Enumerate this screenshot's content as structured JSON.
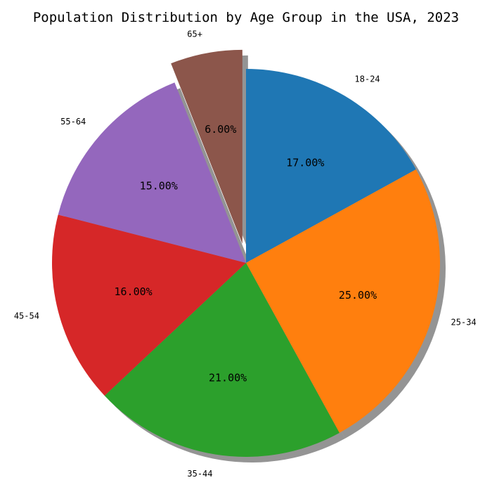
{
  "chart_data": {
    "type": "pie",
    "title": "Population Distribution by Age Group in the USA, 2023",
    "categories": [
      "18-24",
      "25-34",
      "35-44",
      "45-54",
      "55-64",
      "65+"
    ],
    "values": [
      17,
      25,
      21,
      16,
      15,
      6
    ],
    "value_labels": [
      "17.00%",
      "25.00%",
      "21.00%",
      "16.00%",
      "15.00%",
      "6.00%"
    ],
    "colors": [
      "#1f77b4",
      "#ff7f0e",
      "#2ca02c",
      "#d62728",
      "#9467bd",
      "#8c564b"
    ],
    "explode": [
      0,
      0,
      0,
      0,
      0,
      0.1
    ],
    "start_angle": 90,
    "direction": "clockwise",
    "shadow": true
  }
}
